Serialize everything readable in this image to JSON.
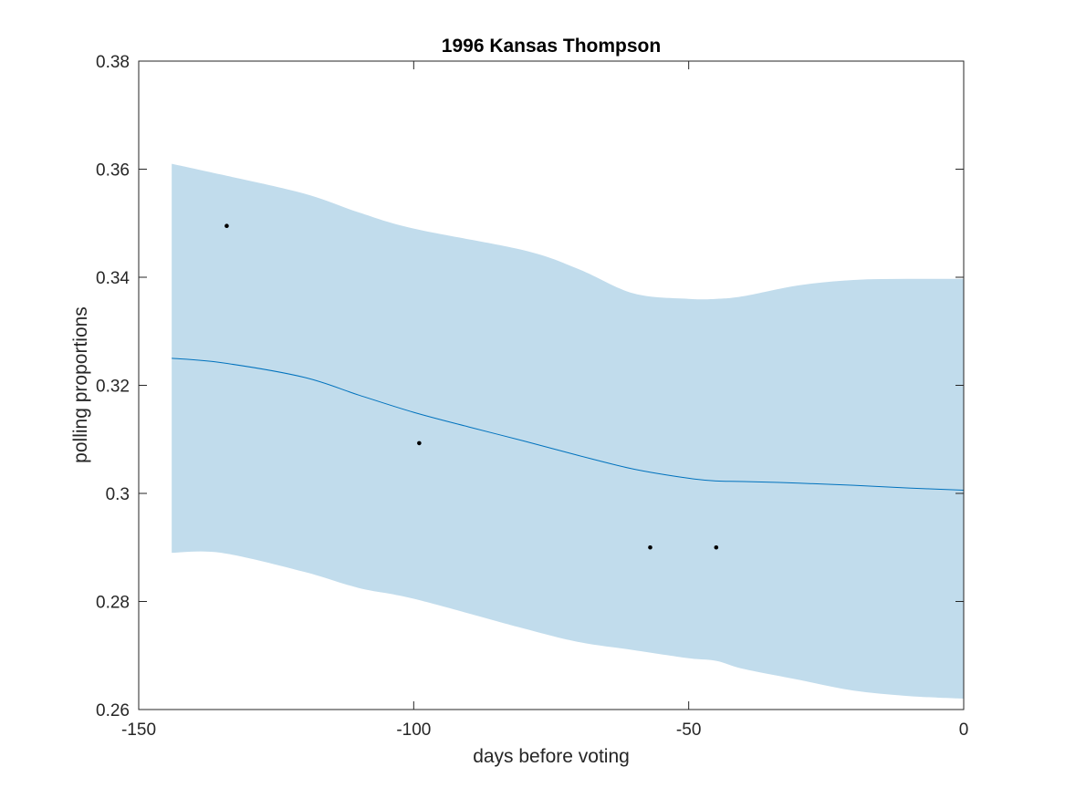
{
  "chart_data": {
    "type": "line",
    "title": "1996 Kansas Thompson",
    "xlabel": "days before voting",
    "ylabel": "polling proportions",
    "xlim": [
      -150,
      0
    ],
    "ylim": [
      0.26,
      0.38
    ],
    "xticks": [
      -150,
      -100,
      -50,
      0
    ],
    "xtick_labels": [
      "-150",
      "-100",
      "-50",
      "0"
    ],
    "yticks": [
      0.26,
      0.28,
      0.3,
      0.32,
      0.34,
      0.36,
      0.38
    ],
    "ytick_labels": [
      "0.26",
      "0.28",
      "0.3",
      "0.32",
      "0.34",
      "0.36",
      "0.38"
    ],
    "grid": false,
    "band": {
      "x": [
        -144,
        -135,
        -120,
        -110,
        -100,
        -80,
        -70,
        -60,
        -50,
        -45,
        -40,
        -30,
        -20,
        -10,
        0
      ],
      "upper": [
        0.361,
        0.359,
        0.3555,
        0.352,
        0.349,
        0.345,
        0.3415,
        0.337,
        0.336,
        0.336,
        0.3365,
        0.3385,
        0.3395,
        0.3397,
        0.3397
      ],
      "lower": [
        0.289,
        0.289,
        0.2855,
        0.2825,
        0.2805,
        0.275,
        0.2725,
        0.271,
        0.2695,
        0.269,
        0.2675,
        0.2655,
        0.2635,
        0.2625,
        0.262
      ]
    },
    "line": {
      "x": [
        -144,
        -135,
        -120,
        -110,
        -100,
        -90,
        -80,
        -70,
        -60,
        -50,
        -45,
        -40,
        -30,
        -20,
        -10,
        0
      ],
      "y": [
        0.325,
        0.3242,
        0.3215,
        0.3182,
        0.315,
        0.3123,
        0.3097,
        0.307,
        0.3045,
        0.3028,
        0.3023,
        0.3022,
        0.3019,
        0.3015,
        0.301,
        0.3006
      ]
    },
    "points": {
      "x": [
        -134,
        -99,
        -57,
        -45
      ],
      "y": [
        0.3495,
        0.3093,
        0.29,
        0.29
      ]
    },
    "colors": {
      "band": "#c1dcec",
      "line": "#0072bd",
      "points": "#000000",
      "axes": "#262626"
    }
  }
}
